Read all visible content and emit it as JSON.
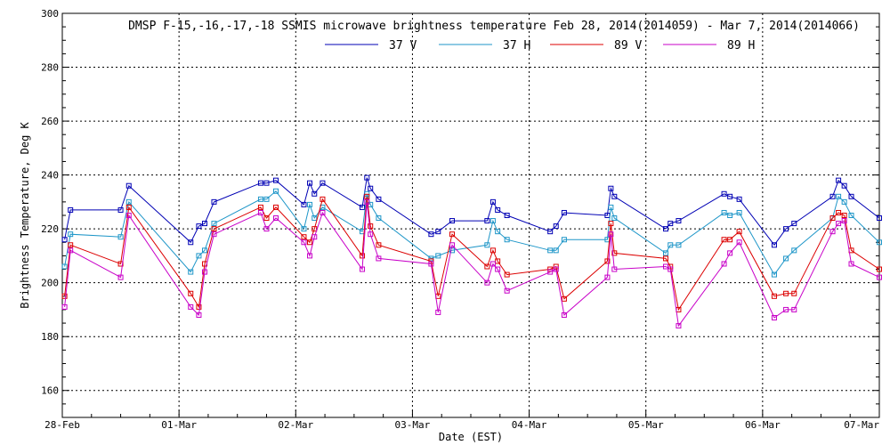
{
  "chart_data": {
    "type": "line",
    "title": "DMSP F-15,-16,-17,-18 SSMIS microwave brightness temperature Feb 28, 2014(2014059) - Mar  7, 2014(2014066)",
    "xlabel": "Date (EST)",
    "ylabel": "Brightness Temperature, Deg K",
    "xlim": [
      0,
      7
    ],
    "ylim": [
      150,
      300
    ],
    "x_ticks": [
      {
        "value": 0,
        "label": "28-Feb"
      },
      {
        "value": 1,
        "label": "01-Mar"
      },
      {
        "value": 2,
        "label": "02-Mar"
      },
      {
        "value": 3,
        "label": "03-Mar"
      },
      {
        "value": 4,
        "label": "04-Mar"
      },
      {
        "value": 5,
        "label": "05-Mar"
      },
      {
        "value": 6,
        "label": "06-Mar"
      },
      {
        "value": 7,
        "label": "07-Mar"
      }
    ],
    "y_ticks": [
      160,
      180,
      200,
      220,
      240,
      260,
      280,
      300
    ],
    "grid": true,
    "legend_position": "top",
    "x": [
      0.02,
      0.07,
      0.5,
      0.57,
      1.1,
      1.17,
      1.22,
      1.3,
      1.7,
      1.75,
      1.83,
      2.07,
      2.12,
      2.16,
      2.23,
      2.57,
      2.61,
      2.64,
      2.71,
      3.16,
      3.22,
      3.34,
      3.64,
      3.69,
      3.73,
      3.81,
      4.18,
      4.23,
      4.3,
      4.67,
      4.7,
      4.73,
      5.17,
      5.21,
      5.28,
      5.67,
      5.72,
      5.8,
      6.1,
      6.2,
      6.27,
      6.6,
      6.65,
      6.7,
      6.76,
      7.0
    ],
    "series": [
      {
        "name": "37 V",
        "color": "#0000b4",
        "values": [
          216,
          227,
          227,
          236,
          215,
          221,
          222,
          230,
          237,
          237,
          238,
          229,
          237,
          233,
          237,
          228,
          239,
          235,
          231,
          218,
          219,
          223,
          223,
          230,
          227,
          225,
          219,
          221,
          226,
          225,
          235,
          232,
          220,
          222,
          223,
          233,
          232,
          231,
          214,
          220,
          222,
          232,
          238,
          236,
          232,
          224
        ]
      },
      {
        "name": "37 H",
        "color": "#1e96c8",
        "values": [
          206,
          218,
          217,
          230,
          204,
          210,
          212,
          222,
          231,
          231,
          234,
          220,
          229,
          224,
          228,
          219,
          233,
          229,
          224,
          209,
          210,
          212,
          214,
          223,
          219,
          216,
          212,
          212,
          216,
          216,
          228,
          224,
          211,
          214,
          214,
          226,
          225,
          226,
          203,
          209,
          212,
          224,
          232,
          230,
          225,
          215
        ]
      },
      {
        "name": "89 V",
        "color": "#dc0000",
        "values": [
          195,
          214,
          207,
          228,
          196,
          191,
          207,
          220,
          228,
          224,
          228,
          217,
          215,
          220,
          231,
          210,
          232,
          221,
          214,
          208,
          195,
          218,
          206,
          212,
          208,
          203,
          205,
          206,
          194,
          208,
          222,
          211,
          209,
          206,
          190,
          216,
          216,
          219,
          195,
          196,
          196,
          224,
          226,
          225,
          212,
          205
        ]
      },
      {
        "name": "89 H",
        "color": "#c800c8",
        "values": [
          191,
          212,
          202,
          225,
          191,
          188,
          204,
          218,
          226,
          220,
          224,
          215,
          210,
          217,
          226,
          205,
          230,
          218,
          209,
          207,
          189,
          214,
          200,
          207,
          205,
          197,
          204,
          205,
          188,
          202,
          218,
          205,
          206,
          205,
          184,
          207,
          211,
          215,
          187,
          190,
          190,
          219,
          222,
          223,
          207,
          202
        ]
      }
    ]
  }
}
